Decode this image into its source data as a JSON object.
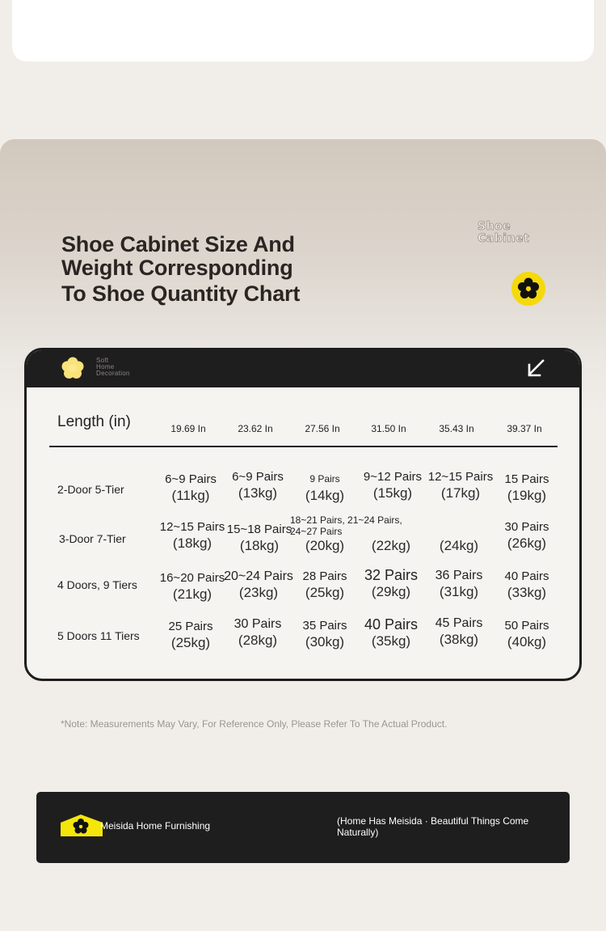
{
  "title": {
    "line1": "Shoe Cabinet Size And",
    "line2": "Weight Corresponding",
    "line3": "To Shoe Quantity Chart"
  },
  "brand_word": {
    "line1": "Shoe",
    "line2": "Cabinet"
  },
  "card_header": {
    "text": "Soft\nHome\nDecoration",
    "icons": [
      "flower-icon",
      "arrow-down-left-icon"
    ]
  },
  "table": {
    "length_label": "Length (in)",
    "columns": [
      "19.69 In",
      "23.62 In",
      "27.56 In",
      "31.50 In",
      "35.43 In",
      "39.37 In"
    ],
    "rows": [
      {
        "label": "2-Door 5-Tier",
        "cells": [
          {
            "pairs": "6~9 Pairs",
            "weight": "(11kg)"
          },
          {
            "pairs": "6~9 Pairs",
            "weight": "(13kg)"
          },
          {
            "pairs": "9 Pairs",
            "weight": "(14kg)"
          },
          {
            "pairs": "9~12 Pairs",
            "weight": "(15kg)"
          },
          {
            "pairs": "12~15 Pairs",
            "weight": "(17kg)"
          },
          {
            "pairs": "15 Pairs",
            "weight": "(19kg)"
          }
        ]
      },
      {
        "label": "3-Door 7-Tier",
        "cells": [
          {
            "pairs": "12~15 Pairs",
            "weight": "(18kg)"
          },
          {
            "pairs": "15~18 Pairs",
            "weight": "(18kg)"
          },
          {
            "pairs": "18~21 Pairs, 21~24 Pairs, 24~27 Pairs",
            "weight": "(20kg)"
          },
          {
            "pairs": "",
            "weight": "(22kg)"
          },
          {
            "pairs": "",
            "weight": "(24kg)"
          },
          {
            "pairs": "30 Pairs",
            "weight": "(26kg)"
          }
        ]
      },
      {
        "label": "4 Doors, 9 Tiers",
        "cells": [
          {
            "pairs": "16~20 Pairs",
            "weight": "(21kg)"
          },
          {
            "pairs": "20~24 Pairs",
            "weight": "(23kg)"
          },
          {
            "pairs": "28 Pairs",
            "weight": "(25kg)"
          },
          {
            "pairs": "32 Pairs",
            "weight": "(29kg)"
          },
          {
            "pairs": "36 Pairs",
            "weight": "(31kg)"
          },
          {
            "pairs": "40 Pairs",
            "weight": "(33kg)"
          }
        ]
      },
      {
        "label": "5 Doors 11 Tiers",
        "cells": [
          {
            "pairs": "25 Pairs",
            "weight": "(25kg)"
          },
          {
            "pairs": "30 Pairs",
            "weight": "(28kg)"
          },
          {
            "pairs": "35 Pairs",
            "weight": "(30kg)"
          },
          {
            "pairs": "40 Pairs",
            "weight": "(35kg)"
          },
          {
            "pairs": "45 Pairs",
            "weight": "(38kg)"
          },
          {
            "pairs": "50 Pairs",
            "weight": "(40kg)"
          }
        ]
      }
    ]
  },
  "note": "*Note: Measurements May Vary, For Reference Only, Please Refer To The Actual Product.",
  "footer": {
    "brand_name": "Meisida Home Furnishing",
    "slogan": "(Home Has Meisida · Beautiful Things Come Naturally)"
  },
  "colors": {
    "accent_yellow": "#f5d90a",
    "dark": "#1f1e1e",
    "background": "#f1eeea"
  }
}
